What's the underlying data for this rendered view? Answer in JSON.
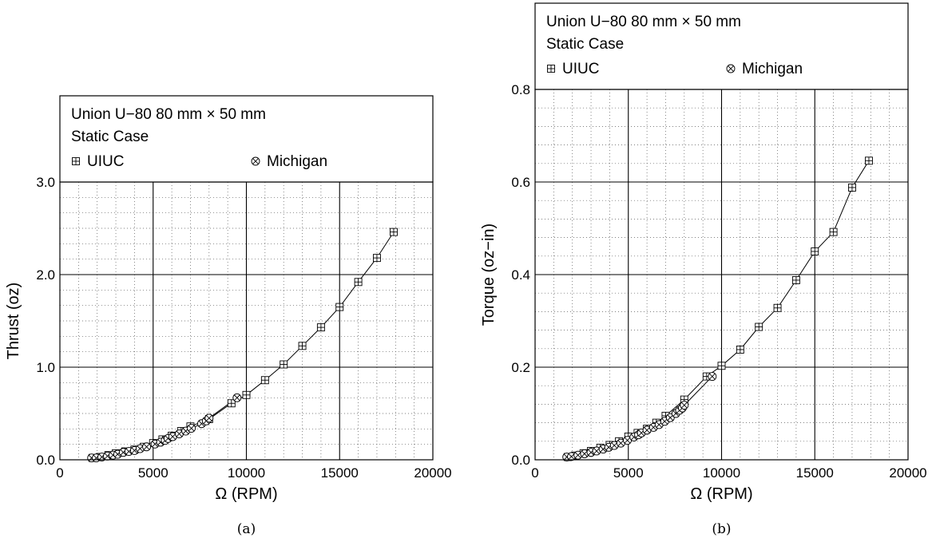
{
  "chart_data": [
    {
      "type": "line",
      "panel_label": "(a)",
      "legend_title_line1": "Union U−80 80 mm × 50 mm",
      "legend_title_line2": "Static Case",
      "xlabel": "Ω (RPM)",
      "ylabel": "Thrust (oz)",
      "xlim": [
        0,
        20000
      ],
      "ylim": [
        0,
        3.0
      ],
      "xticks": [
        0,
        5000,
        10000,
        15000,
        20000
      ],
      "xtick_labels": [
        "0",
        "5000",
        "10000",
        "15000",
        "20000"
      ],
      "yticks": [
        0,
        1.0,
        2.0,
        3.0
      ],
      "ytick_labels": [
        "0.0",
        "1.0",
        "2.0",
        "3.0"
      ],
      "grid": "dotted minor, solid major",
      "legend_placement": "top",
      "series": [
        {
          "name": "UIUC",
          "marker": "boxplus",
          "x": [
            1750,
            2150,
            2600,
            3000,
            3500,
            4000,
            4500,
            5000,
            5500,
            6000,
            6500,
            7000,
            8000,
            9200,
            10000,
            11000,
            12000,
            13000,
            14000,
            15000,
            16000,
            17000,
            17900
          ],
          "y": [
            0.02,
            0.03,
            0.05,
            0.07,
            0.09,
            0.11,
            0.14,
            0.18,
            0.22,
            0.26,
            0.31,
            0.36,
            0.44,
            0.61,
            0.7,
            0.86,
            1.03,
            1.23,
            1.43,
            1.65,
            1.92,
            2.18,
            2.46
          ]
        },
        {
          "name": "Michigan",
          "marker": "otimes",
          "x": [
            1700,
            1950,
            2250,
            2550,
            2850,
            3100,
            3400,
            3700,
            4000,
            4300,
            4650,
            5100,
            5400,
            5650,
            5800,
            6050,
            6400,
            6750,
            7050,
            7600,
            7850,
            8000,
            9500
          ],
          "y": [
            0.02,
            0.02,
            0.03,
            0.04,
            0.05,
            0.06,
            0.08,
            0.09,
            0.1,
            0.12,
            0.14,
            0.17,
            0.19,
            0.21,
            0.23,
            0.25,
            0.28,
            0.31,
            0.34,
            0.39,
            0.42,
            0.45,
            0.67
          ]
        }
      ]
    },
    {
      "type": "line",
      "panel_label": "(b)",
      "legend_title_line1": "Union U−80 80 mm × 50 mm",
      "legend_title_line2": "Static Case",
      "xlabel": "Ω (RPM)",
      "ylabel": "Torque (oz−in)",
      "xlim": [
        0,
        20000
      ],
      "ylim": [
        0,
        0.8
      ],
      "xticks": [
        0,
        5000,
        10000,
        15000,
        20000
      ],
      "xtick_labels": [
        "0",
        "5000",
        "10000",
        "15000",
        "20000"
      ],
      "yticks": [
        0,
        0.2,
        0.4,
        0.6,
        0.8
      ],
      "ytick_labels": [
        "0.0",
        "0.2",
        "0.4",
        "0.6",
        "0.8"
      ],
      "grid": "dotted minor, solid major",
      "legend_placement": "top",
      "series": [
        {
          "name": "UIUC",
          "marker": "boxplus",
          "x": [
            1750,
            2150,
            2600,
            3000,
            3500,
            4000,
            4500,
            5000,
            5500,
            6000,
            6500,
            7000,
            8000,
            9200,
            10000,
            11000,
            12000,
            13000,
            14000,
            15000,
            16000,
            17000,
            17900
          ],
          "y": [
            0.006,
            0.009,
            0.014,
            0.019,
            0.026,
            0.032,
            0.04,
            0.05,
            0.058,
            0.067,
            0.08,
            0.095,
            0.13,
            0.18,
            0.203,
            0.238,
            0.287,
            0.328,
            0.388,
            0.45,
            0.492,
            0.588,
            0.646
          ]
        },
        {
          "name": "Michigan",
          "marker": "otimes",
          "x": [
            1700,
            1950,
            2300,
            2650,
            3000,
            3300,
            3650,
            3950,
            4250,
            4600,
            4950,
            5300,
            5550,
            5700,
            6000,
            6350,
            6650,
            6950,
            7250,
            7550,
            7750,
            7900,
            8000,
            9500
          ],
          "y": [
            0.006,
            0.007,
            0.01,
            0.013,
            0.016,
            0.019,
            0.023,
            0.027,
            0.031,
            0.036,
            0.042,
            0.049,
            0.054,
            0.058,
            0.064,
            0.07,
            0.076,
            0.083,
            0.091,
            0.1,
            0.107,
            0.112,
            0.118,
            0.18
          ]
        }
      ]
    }
  ]
}
